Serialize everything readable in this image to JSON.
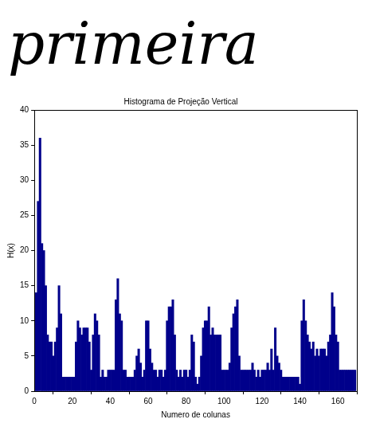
{
  "word_image": {
    "text": "primeira"
  },
  "chart_data": {
    "type": "bar",
    "title": "Histograma de Projeção Vertical",
    "x_label": "Numero de colunas",
    "y_label": "H(x)",
    "x": [
      1,
      2,
      3,
      4,
      5,
      6,
      7,
      8,
      9,
      10,
      11,
      12,
      13,
      14,
      15,
      16,
      17,
      18,
      19,
      20,
      21,
      22,
      23,
      24,
      25,
      26,
      27,
      28,
      29,
      30,
      31,
      32,
      33,
      34,
      35,
      36,
      37,
      38,
      39,
      40,
      41,
      42,
      43,
      44,
      45,
      46,
      47,
      48,
      49,
      50,
      51,
      52,
      53,
      54,
      55,
      56,
      57,
      58,
      59,
      60,
      61,
      62,
      63,
      64,
      65,
      66,
      67,
      68,
      69,
      70,
      71,
      72,
      73,
      74,
      75,
      76,
      77,
      78,
      79,
      80,
      81,
      82,
      83,
      84,
      85,
      86,
      87,
      88,
      89,
      90,
      91,
      92,
      93,
      94,
      95,
      96,
      97,
      98,
      99,
      100,
      101,
      102,
      103,
      104,
      105,
      106,
      107,
      108,
      109,
      110,
      111,
      112,
      113,
      114,
      115,
      116,
      117,
      118,
      119,
      120,
      121,
      122,
      123,
      124,
      125,
      126,
      127,
      128,
      129,
      130,
      131,
      132,
      133,
      134,
      135,
      136,
      137,
      138,
      139,
      140,
      141,
      142,
      143,
      144,
      145,
      146,
      147,
      148,
      149,
      150,
      151,
      152,
      153,
      154,
      155,
      156,
      157,
      158,
      159,
      160,
      161,
      162,
      163,
      164,
      165,
      166,
      167,
      168,
      169
    ],
    "values": [
      14,
      27,
      36,
      21,
      20,
      15,
      8,
      7,
      7,
      5,
      7,
      9,
      15,
      11,
      2,
      2,
      2,
      2,
      2,
      2,
      2,
      7,
      10,
      9,
      8,
      9,
      9,
      9,
      7,
      3,
      8,
      11,
      10,
      8,
      2,
      3,
      2,
      2,
      3,
      3,
      3,
      3,
      13,
      16,
      11,
      10,
      3,
      3,
      2,
      2,
      2,
      2,
      3,
      5,
      6,
      4,
      2,
      3,
      10,
      10,
      6,
      4,
      3,
      3,
      2,
      3,
      3,
      2,
      3,
      10,
      12,
      12,
      13,
      8,
      3,
      2,
      3,
      2,
      3,
      3,
      2,
      3,
      8,
      7,
      2,
      1,
      2,
      5,
      9,
      10,
      10,
      12,
      8,
      9,
      8,
      8,
      8,
      8,
      3,
      3,
      3,
      3,
      4,
      9,
      11,
      12,
      13,
      5,
      3,
      3,
      3,
      3,
      3,
      3,
      4,
      3,
      2,
      3,
      2,
      3,
      3,
      3,
      4,
      3,
      6,
      3,
      9,
      5,
      4,
      3,
      2,
      2,
      2,
      2,
      2,
      2,
      2,
      2,
      2,
      1,
      10,
      13,
      10,
      8,
      7,
      6,
      7,
      5,
      6,
      5,
      6,
      6,
      6,
      5,
      7,
      8,
      14,
      12,
      8,
      7,
      3,
      3,
      3,
      3,
      3,
      3,
      3,
      3,
      3
    ],
    "color": "#00008b",
    "xlim": [
      0,
      170
    ],
    "xticks": [
      0,
      20,
      40,
      60,
      80,
      100,
      120,
      140,
      160
    ],
    "ylim": [
      0,
      40
    ],
    "yticks": [
      0,
      5,
      10,
      15,
      20,
      25,
      30,
      35,
      40
    ],
    "grid": false
  }
}
